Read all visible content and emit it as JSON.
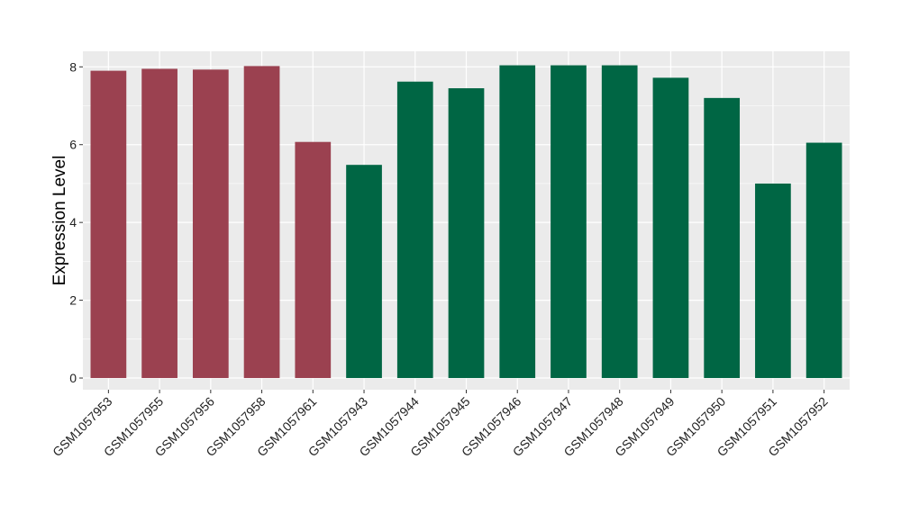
{
  "chart_data": {
    "type": "bar",
    "title": "",
    "xlabel": "",
    "ylabel": "Expression Level",
    "ylim": [
      -0.3,
      8.4
    ],
    "yticks": [
      0,
      2,
      4,
      6,
      8
    ],
    "grid": true,
    "legend": "none",
    "categories": [
      "GSM1057953",
      "GSM1057955",
      "GSM1057956",
      "GSM1057958",
      "GSM1057961",
      "GSM1057943",
      "GSM1057944",
      "GSM1057945",
      "GSM1057946",
      "GSM1057947",
      "GSM1057948",
      "GSM1057949",
      "GSM1057950",
      "GSM1057951",
      "GSM1057952"
    ],
    "values": [
      7.9,
      7.95,
      7.93,
      8.02,
      6.07,
      5.48,
      7.62,
      7.45,
      8.04,
      8.04,
      8.04,
      7.72,
      7.2,
      5.0,
      6.05
    ],
    "groups": [
      0,
      0,
      0,
      0,
      0,
      1,
      1,
      1,
      1,
      1,
      1,
      1,
      1,
      1,
      1
    ],
    "colors": {
      "group_0": "#9b4150",
      "group_1": "#006644",
      "panel_background": "#ebebeb",
      "gridline": "#ffffff"
    }
  }
}
